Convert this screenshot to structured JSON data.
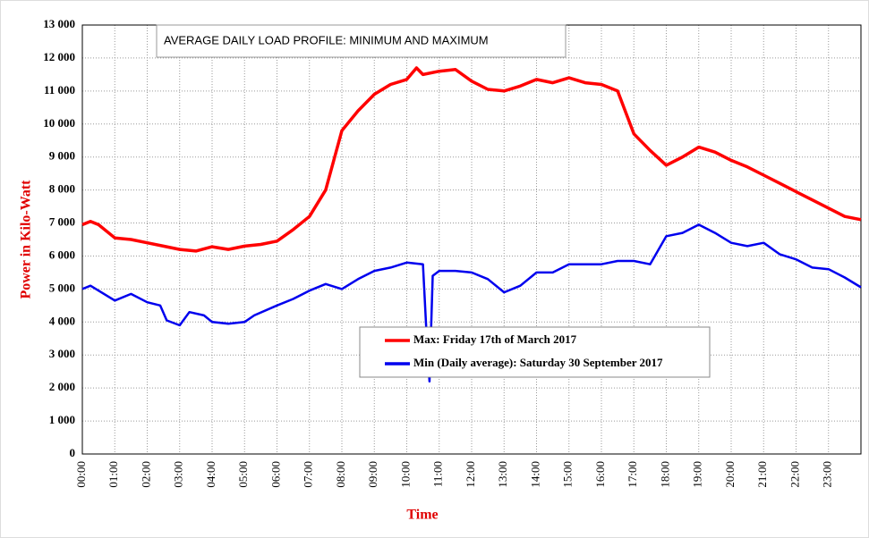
{
  "chart_data": {
    "type": "line",
    "title": "AVERAGE DAILY LOAD PROFILE: MINIMUM AND MAXIMUM",
    "y_label": "Power in Kilo-Watt",
    "x_label": "Time",
    "xlim": [
      0,
      24
    ],
    "xticks": [
      {
        "value": 0,
        "label": "00:00"
      },
      {
        "value": 1,
        "label": "01:00"
      },
      {
        "value": 2,
        "label": "02:00"
      },
      {
        "value": 3,
        "label": "03:00"
      },
      {
        "value": 4,
        "label": "04:00"
      },
      {
        "value": 5,
        "label": "05:00"
      },
      {
        "value": 6,
        "label": "06:00"
      },
      {
        "value": 7,
        "label": "07:00"
      },
      {
        "value": 8,
        "label": "08:00"
      },
      {
        "value": 9,
        "label": "09:00"
      },
      {
        "value": 10,
        "label": "10:00"
      },
      {
        "value": 11,
        "label": "11:00"
      },
      {
        "value": 12,
        "label": "12:00"
      },
      {
        "value": 13,
        "label": "13:00"
      },
      {
        "value": 14,
        "label": "14:00"
      },
      {
        "value": 15,
        "label": "15:00"
      },
      {
        "value": 16,
        "label": "16:00"
      },
      {
        "value": 17,
        "label": "17:00"
      },
      {
        "value": 18,
        "label": "18:00"
      },
      {
        "value": 19,
        "label": "19:00"
      },
      {
        "value": 20,
        "label": "20:00"
      },
      {
        "value": 21,
        "label": "21:00"
      },
      {
        "value": 22,
        "label": "22:00"
      },
      {
        "value": 23,
        "label": "23:00"
      }
    ],
    "ylim": [
      0,
      13000
    ],
    "yticks": [
      0,
      {
        "value": 1000,
        "label": "1 000"
      },
      {
        "value": 2000,
        "label": "2 000"
      },
      {
        "value": 3000,
        "label": "3 000"
      },
      {
        "value": 4000,
        "label": "4 000"
      },
      {
        "value": 5000,
        "label": "5 000"
      },
      {
        "value": 6000,
        "label": "6 000"
      },
      {
        "value": 7000,
        "label": "7 000"
      },
      {
        "value": 8000,
        "label": "8 000"
      },
      {
        "value": 9000,
        "label": "9 000"
      },
      {
        "value": 10000,
        "label": "10 000"
      },
      {
        "value": 11000,
        "label": "11 000"
      },
      {
        "value": 12000,
        "label": "12 000"
      },
      {
        "value": 13000,
        "label": "13 000"
      }
    ],
    "grid": true,
    "series": [
      {
        "name": "Max: Friday 17th of March 2017",
        "color": "#ff0000",
        "x": [
          0,
          0.25,
          0.5,
          1,
          1.5,
          2,
          2.5,
          3,
          3.5,
          4,
          4.5,
          5,
          5.5,
          6,
          6.5,
          7,
          7.5,
          8,
          8.5,
          9,
          9.5,
          10,
          10.3,
          10.5,
          11,
          11.5,
          12,
          12.5,
          13,
          13.5,
          14,
          14.5,
          15,
          15.5,
          16,
          16.5,
          17,
          17.5,
          18,
          18.5,
          19,
          19.5,
          20,
          20.5,
          21,
          21.5,
          22,
          22.5,
          23,
          23.5,
          24
        ],
        "values": [
          6950,
          7050,
          6950,
          6550,
          6500,
          6400,
          6300,
          6200,
          6150,
          6280,
          6200,
          6300,
          6350,
          6450,
          6800,
          7200,
          8000,
          9800,
          10400,
          10900,
          11200,
          11350,
          11700,
          11500,
          11600,
          11650,
          11300,
          11050,
          11000,
          11150,
          11350,
          11250,
          11400,
          11250,
          11200,
          11000,
          9700,
          9200,
          8750,
          9000,
          9300,
          9150,
          8900,
          8700,
          8450,
          8200,
          7950,
          7700,
          7450,
          7200,
          7100
        ]
      },
      {
        "name": "Min (Daily average): Saturday 30 September 2017",
        "color": "#0000ee",
        "x": [
          0,
          0.25,
          0.5,
          1,
          1.5,
          2,
          2.4,
          2.6,
          3,
          3.3,
          3.75,
          4,
          4.5,
          5,
          5.3,
          6,
          6.5,
          7,
          7.5,
          8,
          8.5,
          9,
          9.5,
          10,
          10.5,
          10.6,
          10.7,
          10.8,
          11,
          11.5,
          12,
          12.5,
          13,
          13.5,
          14,
          14.5,
          15,
          15.5,
          16,
          16.5,
          17,
          17.5,
          18,
          18.5,
          19,
          19.5,
          20,
          20.5,
          21,
          21.5,
          22,
          22.5,
          23,
          23.5,
          24
        ],
        "values": [
          5000,
          5100,
          4950,
          4650,
          4850,
          4600,
          4500,
          4050,
          3900,
          4300,
          4200,
          4000,
          3950,
          4000,
          4200,
          4500,
          4700,
          4950,
          5150,
          5000,
          5300,
          5550,
          5650,
          5800,
          5750,
          3800,
          2200,
          5400,
          5550,
          5550,
          5500,
          5300,
          4900,
          5100,
          5500,
          5500,
          5750,
          5750,
          5750,
          5850,
          5850,
          5750,
          6600,
          6700,
          6950,
          6700,
          6400,
          6300,
          6400,
          6050,
          5900,
          5650,
          5600,
          5350,
          5050
        ]
      }
    ]
  }
}
